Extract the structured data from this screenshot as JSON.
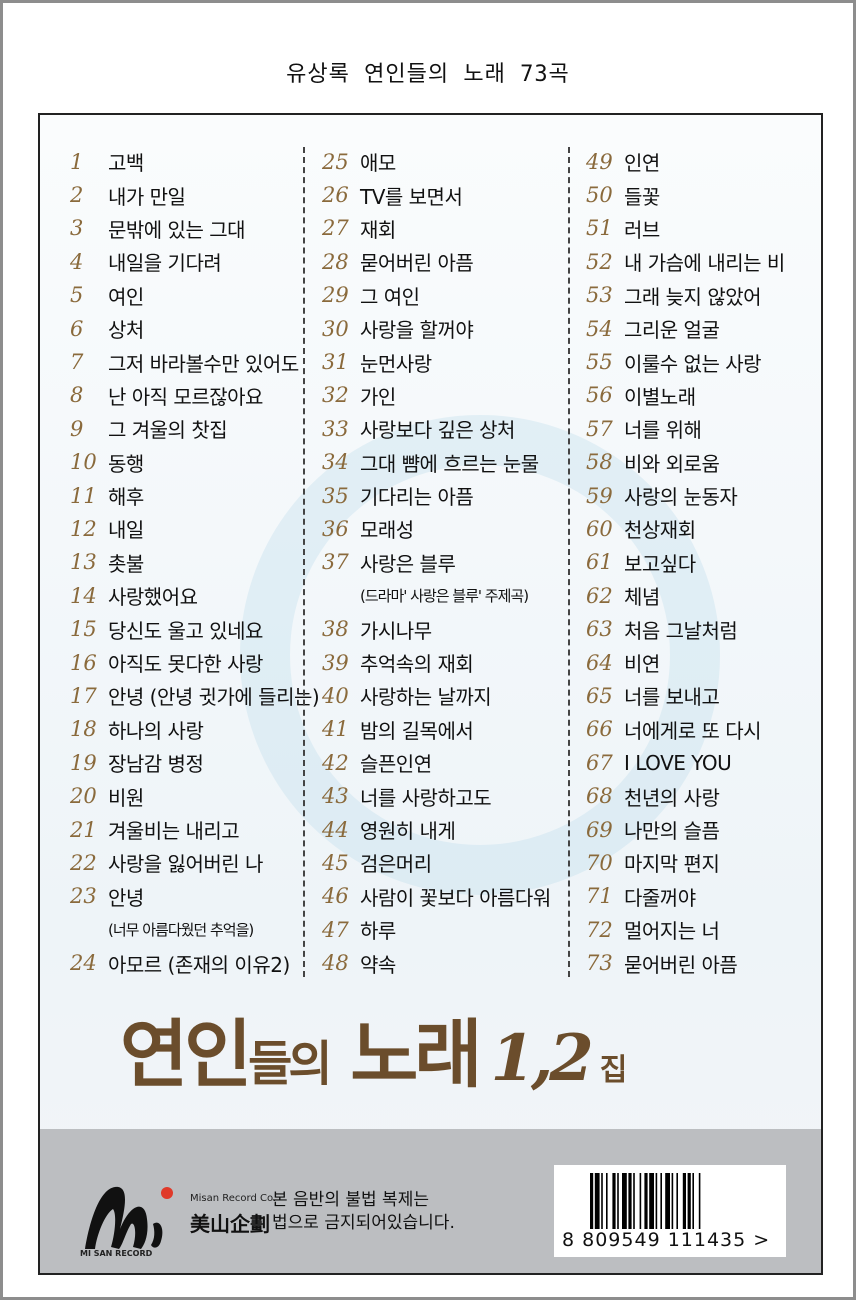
{
  "header": {
    "title": "유상록 연인들의 노래 73곡"
  },
  "columns": [
    [
      {
        "n": "1",
        "t": "고백"
      },
      {
        "n": "2",
        "t": "내가 만일"
      },
      {
        "n": "3",
        "t": "문밖에 있는 그대"
      },
      {
        "n": "4",
        "t": "내일을 기다려"
      },
      {
        "n": "5",
        "t": "여인"
      },
      {
        "n": "6",
        "t": "상처"
      },
      {
        "n": "7",
        "t": "그저 바라볼수만 있어도"
      },
      {
        "n": "8",
        "t": "난 아직 모르잖아요"
      },
      {
        "n": "9",
        "t": "그 겨울의 찻집"
      },
      {
        "n": "10",
        "t": "동행"
      },
      {
        "n": "11",
        "t": "해후"
      },
      {
        "n": "12",
        "t": "내일"
      },
      {
        "n": "13",
        "t": "촛불"
      },
      {
        "n": "14",
        "t": "사랑했어요"
      },
      {
        "n": "15",
        "t": "당신도 울고 있네요"
      },
      {
        "n": "16",
        "t": "아직도 못다한 사랑"
      },
      {
        "n": "17",
        "t": "안녕 (안녕 귓가에 들리는)"
      },
      {
        "n": "18",
        "t": "하나의 사랑"
      },
      {
        "n": "19",
        "t": "장남감 병정"
      },
      {
        "n": "20",
        "t": "비원"
      },
      {
        "n": "21",
        "t": "겨울비는 내리고"
      },
      {
        "n": "22",
        "t": "사랑을 잃어버린 나"
      },
      {
        "n": "23",
        "t": "안녕"
      },
      {
        "n": "",
        "t": "(너무 아름다웠던 추억을)"
      },
      {
        "n": "24",
        "t": "아모르 (존재의 이유2)"
      }
    ],
    [
      {
        "n": "25",
        "t": "애모"
      },
      {
        "n": "26",
        "t": "TV를 보면서"
      },
      {
        "n": "27",
        "t": "재회"
      },
      {
        "n": "28",
        "t": "묻어버린 아픔"
      },
      {
        "n": "29",
        "t": "그 여인"
      },
      {
        "n": "30",
        "t": "사랑을 할꺼야"
      },
      {
        "n": "31",
        "t": "눈먼사랑"
      },
      {
        "n": "32",
        "t": "가인"
      },
      {
        "n": "33",
        "t": "사랑보다 깊은 상처"
      },
      {
        "n": "34",
        "t": "그대 뺨에 흐르는 눈물"
      },
      {
        "n": "35",
        "t": "기다리는 아픔"
      },
      {
        "n": "36",
        "t": "모래성"
      },
      {
        "n": "37",
        "t": "사랑은 블루"
      },
      {
        "n": "",
        "t": "(드라마' 사랑은 블루' 주제곡)"
      },
      {
        "n": "38",
        "t": "가시나무"
      },
      {
        "n": "39",
        "t": "추억속의 재회"
      },
      {
        "n": "40",
        "t": "사랑하는 날까지"
      },
      {
        "n": "41",
        "t": "밤의 길목에서"
      },
      {
        "n": "42",
        "t": "슬픈인연"
      },
      {
        "n": "43",
        "t": "너를 사랑하고도"
      },
      {
        "n": "44",
        "t": "영원히 내게"
      },
      {
        "n": "45",
        "t": "검은머리"
      },
      {
        "n": "46",
        "t": "사람이 꽃보다 아름다워"
      },
      {
        "n": "47",
        "t": "하루"
      },
      {
        "n": "48",
        "t": "약속"
      }
    ],
    [
      {
        "n": "49",
        "t": "인연"
      },
      {
        "n": "50",
        "t": "들꽃"
      },
      {
        "n": "51",
        "t": "러브"
      },
      {
        "n": "52",
        "t": "내 가슴에 내리는 비"
      },
      {
        "n": "53",
        "t": "그래 늦지 않았어"
      },
      {
        "n": "54",
        "t": "그리운 얼굴"
      },
      {
        "n": "55",
        "t": "이룰수 없는 사랑"
      },
      {
        "n": "56",
        "t": "이별노래"
      },
      {
        "n": "57",
        "t": "너를 위해"
      },
      {
        "n": "58",
        "t": "비와 외로움"
      },
      {
        "n": "59",
        "t": "사랑의 눈동자"
      },
      {
        "n": "60",
        "t": "천상재회"
      },
      {
        "n": "61",
        "t": "보고싶다"
      },
      {
        "n": "62",
        "t": "체념"
      },
      {
        "n": "63",
        "t": "처음 그날처럼"
      },
      {
        "n": "64",
        "t": "비연"
      },
      {
        "n": "65",
        "t": "너를 보내고"
      },
      {
        "n": "66",
        "t": "너에게로 또 다시"
      },
      {
        "n": "67",
        "t": "I LOVE YOU"
      },
      {
        "n": "68",
        "t": "천년의 사랑"
      },
      {
        "n": "69",
        "t": "나만의 슬픔"
      },
      {
        "n": "70",
        "t": "마지막 편지"
      },
      {
        "n": "71",
        "t": "다줄꺼야"
      },
      {
        "n": "72",
        "t": "멀어지는 너"
      },
      {
        "n": "73",
        "t": "묻어버린 아픔"
      }
    ]
  ],
  "album_title": {
    "part1": "연인",
    "part2": "들의",
    "part3": "노래",
    "volume": "1,2",
    "suffix": "집"
  },
  "footer": {
    "logo_text": "MI SAN RECORD",
    "company_en": "Misan Record Co.",
    "company_cn": "美山企劃",
    "warning_line1": "본 음반의 불법 복제는",
    "warning_line2": "법으로 금지되어있습니다.",
    "barcode": "8 809549 111435 >"
  },
  "colors": {
    "number": "#8a6a3c",
    "album_title": "#6b4d2c",
    "band": "#bcbec1"
  }
}
